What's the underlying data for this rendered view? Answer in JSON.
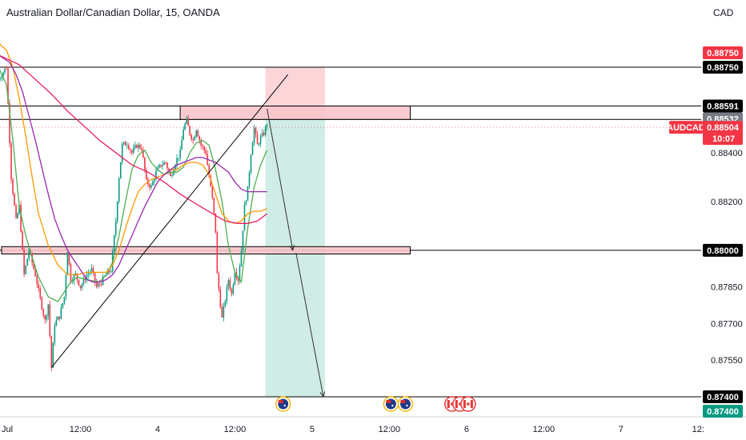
{
  "header": {
    "title": "Australian Dollar/Canadian Dollar, 15, OANDA",
    "currency": "CAD"
  },
  "chart_data": {
    "type": "candlestick",
    "symbol": "AUDCAD",
    "ylim": [
      0.8737,
      0.8904
    ],
    "x_axis_ticks": [
      {
        "label": "Jul",
        "bar": 0
      },
      {
        "label": "12:00",
        "bar": 48
      },
      {
        "label": "4",
        "bar": 96
      },
      {
        "label": "12:00",
        "bar": 144
      },
      {
        "label": "5",
        "bar": 192
      },
      {
        "label": "12:00",
        "bar": 240
      },
      {
        "label": "6",
        "bar": 288
      },
      {
        "label": "12:00",
        "bar": 336
      },
      {
        "label": "7",
        "bar": 384
      },
      {
        "label": "12:",
        "bar": 432
      }
    ],
    "y_axis_ticks": [
      "0.88400",
      "0.88200",
      "0.87850",
      "0.87700",
      "0.87550",
      "0.87400"
    ],
    "price_badges": [
      {
        "label": "0.88750",
        "value": 0.8875,
        "bg": "#f23645",
        "fg": "#ffffff",
        "offset": -18
      },
      {
        "label": "0.88750",
        "value": 0.8875,
        "bg": "#000000",
        "fg": "#ffffff",
        "offset": 0
      },
      {
        "label": "0.88591",
        "value": 0.88591,
        "bg": "#000000",
        "fg": "#ffffff",
        "offset": 0
      },
      {
        "label": "0.88536",
        "value": 0.88536,
        "bg": "#000000",
        "fg": "#ffffff",
        "offset": 0
      },
      {
        "label": "0.88532",
        "value": 0.88532,
        "bg": "#787b86",
        "fg": "#ffffff",
        "offset": -2
      },
      {
        "label": "0.88000",
        "value": 0.88,
        "bg": "#000000",
        "fg": "#ffffff",
        "offset": 0
      },
      {
        "label": "0.87400",
        "value": 0.874,
        "bg": "#000000",
        "fg": "#ffffff",
        "offset": 0
      },
      {
        "label": "0.87400",
        "value": 0.874,
        "bg": "#089981",
        "fg": "#ffffff",
        "offset": 18
      }
    ],
    "last_price": {
      "symbol": "AUDCAD",
      "price": "0.88504",
      "countdown": "10:07",
      "value": 0.88504,
      "color": "#f23645"
    },
    "horizontal_lines": [
      0.8875,
      0.88591,
      0.88536,
      0.88,
      0.874
    ],
    "zones": [
      {
        "bar_start": 110,
        "bar_end": 253,
        "y_top": 0.88591,
        "y_bottom": 0.88536,
        "fill": "#f7c5cb"
      },
      {
        "bar_start": -1,
        "bar_end": 253,
        "y_top": 0.88015,
        "y_bottom": 0.87985,
        "fill": "#f7c5cb"
      }
    ],
    "position_tool": {
      "bar_start": 163,
      "bar_end": 200,
      "entry": 0.88536,
      "stop": 0.8875,
      "target": 0.874,
      "stop_fill": "#fcd5d8",
      "target_fill": "#cfede6"
    },
    "trendlines": [
      {
        "from": [
          30,
          0.8752
        ],
        "to": [
          177,
          0.8872
        ]
      }
    ],
    "projection_arrows": [
      {
        "from": [
          164,
          0.8858
        ],
        "to": [
          180,
          0.88
        ]
      },
      {
        "from": [
          182,
          0.8799
        ],
        "to": [
          199,
          0.874
        ]
      }
    ],
    "moving_averages": [
      {
        "color": "#4caf50",
        "points": [
          [
            -3,
            0.8875
          ],
          [
            2,
            0.8868
          ],
          [
            6,
            0.8845
          ],
          [
            10,
            0.8818
          ],
          [
            14,
            0.8806
          ],
          [
            18,
            0.8797
          ],
          [
            22,
            0.8789
          ],
          [
            28,
            0.8781
          ],
          [
            34,
            0.8779
          ],
          [
            38,
            0.8783
          ],
          [
            42,
            0.8787
          ],
          [
            46,
            0.8789
          ],
          [
            52,
            0.8788
          ],
          [
            60,
            0.8787
          ],
          [
            64,
            0.879
          ],
          [
            68,
            0.8795
          ],
          [
            72,
            0.8806
          ],
          [
            76,
            0.882
          ],
          [
            80,
            0.8833
          ],
          [
            84,
            0.8839
          ],
          [
            88,
            0.8841
          ],
          [
            92,
            0.8836
          ],
          [
            96,
            0.8833
          ],
          [
            100,
            0.8831
          ],
          [
            104,
            0.8832
          ],
          [
            108,
            0.8832
          ],
          [
            112,
            0.8834
          ],
          [
            116,
            0.884
          ],
          [
            120,
            0.8844
          ],
          [
            124,
            0.8845
          ],
          [
            128,
            0.8843
          ],
          [
            132,
            0.8833
          ],
          [
            136,
            0.882
          ],
          [
            140,
            0.8802
          ],
          [
            144,
            0.8791
          ],
          [
            148,
            0.8787
          ],
          [
            152,
            0.8809
          ],
          [
            156,
            0.8826
          ],
          [
            160,
            0.8835
          ],
          [
            164,
            0.8841
          ]
        ]
      },
      {
        "color": "#ff9800",
        "points": [
          [
            -3,
            0.8885
          ],
          [
            2,
            0.8882
          ],
          [
            6,
            0.8875
          ],
          [
            10,
            0.8862
          ],
          [
            14,
            0.8847
          ],
          [
            18,
            0.883
          ],
          [
            22,
            0.8815
          ],
          [
            28,
            0.8802
          ],
          [
            34,
            0.8794
          ],
          [
            40,
            0.879
          ],
          [
            46,
            0.879
          ],
          [
            52,
            0.8791
          ],
          [
            58,
            0.8791
          ],
          [
            64,
            0.8791
          ],
          [
            68,
            0.8794
          ],
          [
            72,
            0.88
          ],
          [
            76,
            0.8809
          ],
          [
            80,
            0.8817
          ],
          [
            84,
            0.8824
          ],
          [
            88,
            0.8827
          ],
          [
            92,
            0.8829
          ],
          [
            96,
            0.883
          ],
          [
            100,
            0.8831
          ],
          [
            104,
            0.8833
          ],
          [
            108,
            0.8833
          ],
          [
            112,
            0.8835
          ],
          [
            116,
            0.8836
          ],
          [
            120,
            0.8836
          ],
          [
            124,
            0.8835
          ],
          [
            128,
            0.8831
          ],
          [
            132,
            0.8823
          ],
          [
            136,
            0.8815
          ],
          [
            140,
            0.8812
          ],
          [
            144,
            0.8811
          ],
          [
            148,
            0.8812
          ],
          [
            152,
            0.8815
          ],
          [
            156,
            0.8816
          ],
          [
            160,
            0.8816
          ],
          [
            164,
            0.8817
          ]
        ]
      },
      {
        "color": "#9c27b0",
        "points": [
          [
            -3,
            0.888
          ],
          [
            4,
            0.8877
          ],
          [
            8,
            0.8872
          ],
          [
            12,
            0.8865
          ],
          [
            16,
            0.8855
          ],
          [
            20,
            0.8845
          ],
          [
            24,
            0.8834
          ],
          [
            28,
            0.8823
          ],
          [
            32,
            0.8813
          ],
          [
            36,
            0.8806
          ],
          [
            40,
            0.88
          ],
          [
            44,
            0.8796
          ],
          [
            48,
            0.8792
          ],
          [
            52,
            0.8788
          ],
          [
            56,
            0.8787
          ],
          [
            60,
            0.8787
          ],
          [
            64,
            0.8788
          ],
          [
            68,
            0.879
          ],
          [
            72,
            0.8794
          ],
          [
            76,
            0.88
          ],
          [
            80,
            0.8806
          ],
          [
            84,
            0.8812
          ],
          [
            88,
            0.8818
          ],
          [
            92,
            0.8823
          ],
          [
            96,
            0.8828
          ],
          [
            100,
            0.8831
          ],
          [
            104,
            0.8833
          ],
          [
            108,
            0.8835
          ],
          [
            112,
            0.8836
          ],
          [
            116,
            0.8837
          ],
          [
            120,
            0.8838
          ],
          [
            124,
            0.8838
          ],
          [
            128,
            0.8837
          ],
          [
            132,
            0.8836
          ],
          [
            136,
            0.8834
          ],
          [
            140,
            0.8832
          ],
          [
            144,
            0.8828
          ],
          [
            148,
            0.8825
          ],
          [
            152,
            0.8824
          ],
          [
            156,
            0.8824
          ],
          [
            160,
            0.8824
          ],
          [
            164,
            0.8824
          ]
        ]
      },
      {
        "color": "#e91e63",
        "points": [
          [
            -3,
            0.888
          ],
          [
            10,
            0.8876
          ],
          [
            20,
            0.887
          ],
          [
            30,
            0.8864
          ],
          [
            40,
            0.8857
          ],
          [
            50,
            0.8851
          ],
          [
            60,
            0.8845
          ],
          [
            70,
            0.884
          ],
          [
            80,
            0.8835
          ],
          [
            90,
            0.8832
          ],
          [
            100,
            0.8828
          ],
          [
            110,
            0.8823
          ],
          [
            120,
            0.8819
          ],
          [
            130,
            0.8815
          ],
          [
            138,
            0.8812
          ],
          [
            146,
            0.8811
          ],
          [
            152,
            0.8811
          ],
          [
            158,
            0.8812
          ],
          [
            164,
            0.8815
          ]
        ]
      }
    ],
    "anchors": [
      [
        -3,
        0.887
      ],
      [
        2,
        0.8875
      ],
      [
        5,
        0.883
      ],
      [
        8,
        0.8812
      ],
      [
        10,
        0.8818
      ],
      [
        13,
        0.879
      ],
      [
        16,
        0.88
      ],
      [
        20,
        0.879
      ],
      [
        23,
        0.878
      ],
      [
        26,
        0.8771
      ],
      [
        28,
        0.8778
      ],
      [
        30,
        0.8752
      ],
      [
        32,
        0.877
      ],
      [
        35,
        0.8773
      ],
      [
        38,
        0.8781
      ],
      [
        40,
        0.88
      ],
      [
        42,
        0.8788
      ],
      [
        45,
        0.879
      ],
      [
        48,
        0.8785
      ],
      [
        52,
        0.879
      ],
      [
        55,
        0.8792
      ],
      [
        58,
        0.8785
      ],
      [
        61,
        0.8787
      ],
      [
        64,
        0.879
      ],
      [
        67,
        0.8792
      ],
      [
        70,
        0.8812
      ],
      [
        72,
        0.883
      ],
      [
        74,
        0.8843
      ],
      [
        77,
        0.8844
      ],
      [
        80,
        0.884
      ],
      [
        83,
        0.8843
      ],
      [
        86,
        0.8842
      ],
      [
        89,
        0.8828
      ],
      [
        92,
        0.8826
      ],
      [
        95,
        0.8832
      ],
      [
        98,
        0.8835
      ],
      [
        101,
        0.8836
      ],
      [
        104,
        0.883
      ],
      [
        107,
        0.8836
      ],
      [
        110,
        0.884
      ],
      [
        112,
        0.885
      ],
      [
        114,
        0.8853
      ],
      [
        116,
        0.8848
      ],
      [
        118,
        0.8845
      ],
      [
        120,
        0.885
      ],
      [
        123,
        0.8843
      ],
      [
        126,
        0.884
      ],
      [
        128,
        0.883
      ],
      [
        130,
        0.8821
      ],
      [
        132,
        0.8808
      ],
      [
        133,
        0.879
      ],
      [
        136,
        0.8772
      ],
      [
        138,
        0.878
      ],
      [
        140,
        0.8788
      ],
      [
        142,
        0.8782
      ],
      [
        144,
        0.8792
      ],
      [
        146,
        0.8788
      ],
      [
        148,
        0.88
      ],
      [
        150,
        0.8818
      ],
      [
        152,
        0.8825
      ],
      [
        154,
        0.884
      ],
      [
        156,
        0.885
      ],
      [
        158,
        0.8843
      ],
      [
        160,
        0.8846
      ],
      [
        162,
        0.8848
      ],
      [
        164,
        0.8852
      ]
    ],
    "events": [
      {
        "bar": 174,
        "type": "AU"
      },
      {
        "bar": 241,
        "type": "AU"
      },
      {
        "bar": 250,
        "type": "AU"
      },
      {
        "bar": 279,
        "type": "CA"
      },
      {
        "bar": 284,
        "type": "CA"
      },
      {
        "bar": 289,
        "type": "CA"
      }
    ]
  }
}
